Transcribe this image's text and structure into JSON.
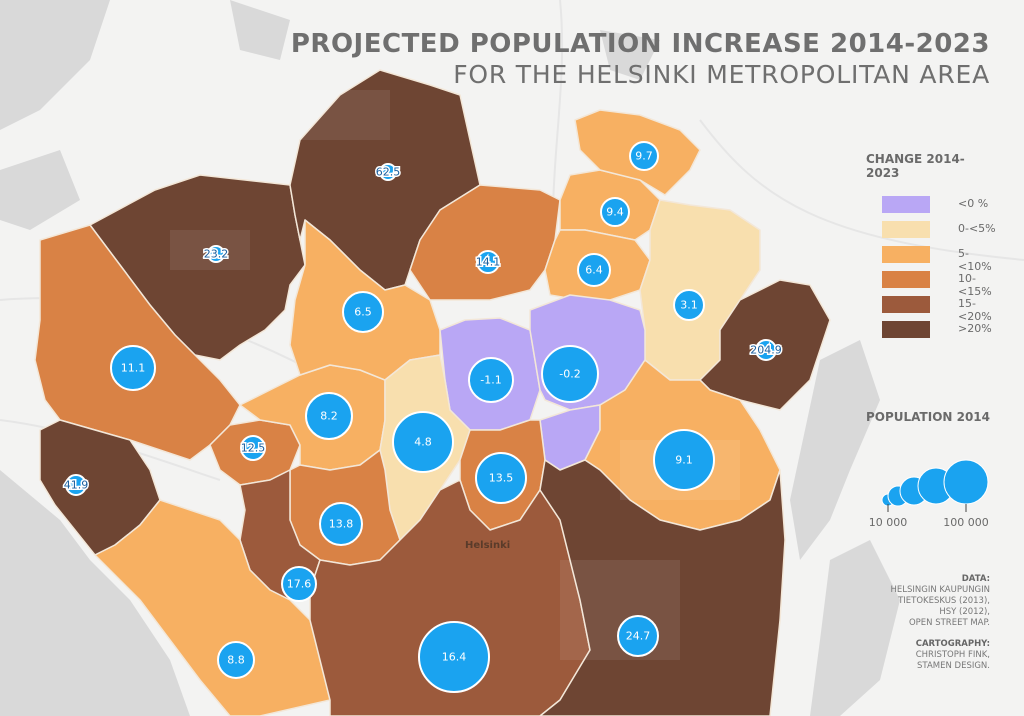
{
  "title": {
    "line1": "PROJECTED POPULATION INCREASE 2014-2023",
    "line2": "FOR THE HELSINKI METROPOLITAN AREA"
  },
  "legend_change": {
    "title": "CHANGE 2014-2023",
    "items": [
      {
        "label": "<0 %",
        "color": "#b9a7f5"
      },
      {
        "label": "0-<5%",
        "color": "#f8dfae"
      },
      {
        "label": "5-<10%",
        "color": "#f7b062"
      },
      {
        "label": "10-<15%",
        "color": "#d98245"
      },
      {
        "label": "15-<20%",
        "color": "#9c5a3c"
      },
      {
        "label": ">20%",
        "color": "#6e4533"
      }
    ]
  },
  "legend_population": {
    "title": "POPULATION 2014",
    "min_label": "10 000",
    "max_label": "100 000",
    "bubble_color": "#1aa3f0"
  },
  "place_label": "Helsinki",
  "districts": [
    {
      "value": "62.5",
      "class": ">20%"
    },
    {
      "value": "23.2",
      "class": ">20%"
    },
    {
      "value": "9.7",
      "class": "5-<10%"
    },
    {
      "value": "9.4",
      "class": "5-<10%"
    },
    {
      "value": "14.1",
      "class": "10-<15%"
    },
    {
      "value": "6.4",
      "class": "5-<10%"
    },
    {
      "value": "3.1",
      "class": "0-<5%"
    },
    {
      "value": "204.9",
      "class": ">20%"
    },
    {
      "value": "6.5",
      "class": "5-<10%"
    },
    {
      "value": "11.1",
      "class": "10-<15%"
    },
    {
      "value": "-1.1",
      "class": "<0 %"
    },
    {
      "value": "-0.2",
      "class": "<0 %"
    },
    {
      "value": "8.2",
      "class": "5-<10%"
    },
    {
      "value": "12.5",
      "class": "10-<15%"
    },
    {
      "value": "4.8",
      "class": "0-<5%"
    },
    {
      "value": "9.1",
      "class": "5-<10%"
    },
    {
      "value": "41.9",
      "class": ">20%"
    },
    {
      "value": "13.5",
      "class": "10-<15%"
    },
    {
      "value": "13.8",
      "class": "10-<15%"
    },
    {
      "value": "17.6",
      "class": "15-<20%"
    },
    {
      "value": "24.7",
      "class": ">20%"
    },
    {
      "value": "8.8",
      "class": "5-<10%"
    },
    {
      "value": "16.4",
      "class": "15-<20%"
    }
  ],
  "credits": {
    "data_heading": "DATA:",
    "data_lines": [
      "HELSINGIN KAUPUNGIN",
      "TIETOKESKUS (2013),",
      "HSY (2012),",
      "OPEN STREET MAP."
    ],
    "carto_heading": "CARTOGRAPHY:",
    "carto_lines": [
      "CHRISTOPH FINK,",
      "STAMEN DESIGN."
    ]
  }
}
